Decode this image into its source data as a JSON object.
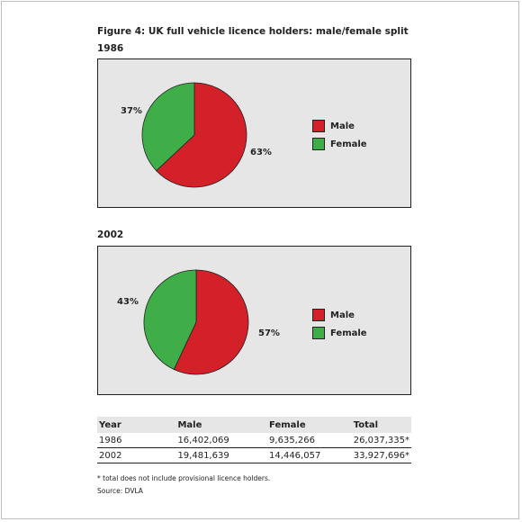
{
  "figure": {
    "title": "Figure 4: UK full vehicle licence holders: male/female split"
  },
  "colors": {
    "male": "#d42029",
    "female": "#3fae49"
  },
  "chart_data": [
    {
      "type": "pie",
      "title": "1986",
      "categories": [
        "Male",
        "Female"
      ],
      "values": [
        63,
        37
      ],
      "labels": [
        "63%",
        "37%"
      ],
      "legend": "right"
    },
    {
      "type": "pie",
      "title": "2002",
      "categories": [
        "Male",
        "Female"
      ],
      "values": [
        57,
        43
      ],
      "labels": [
        "57%",
        "43%"
      ],
      "legend": "right"
    }
  ],
  "table": {
    "headers": [
      "Year",
      "Male",
      "Female",
      "Total"
    ],
    "rows": [
      [
        "1986",
        "16,402,069",
        "9,635,266",
        "26,037,335*"
      ],
      [
        "2002",
        "19,481,639",
        "14,446,057",
        "33,927,696*"
      ]
    ]
  },
  "footnote": "* total does not include provisional licence holders.",
  "source": "Source: DVLA"
}
